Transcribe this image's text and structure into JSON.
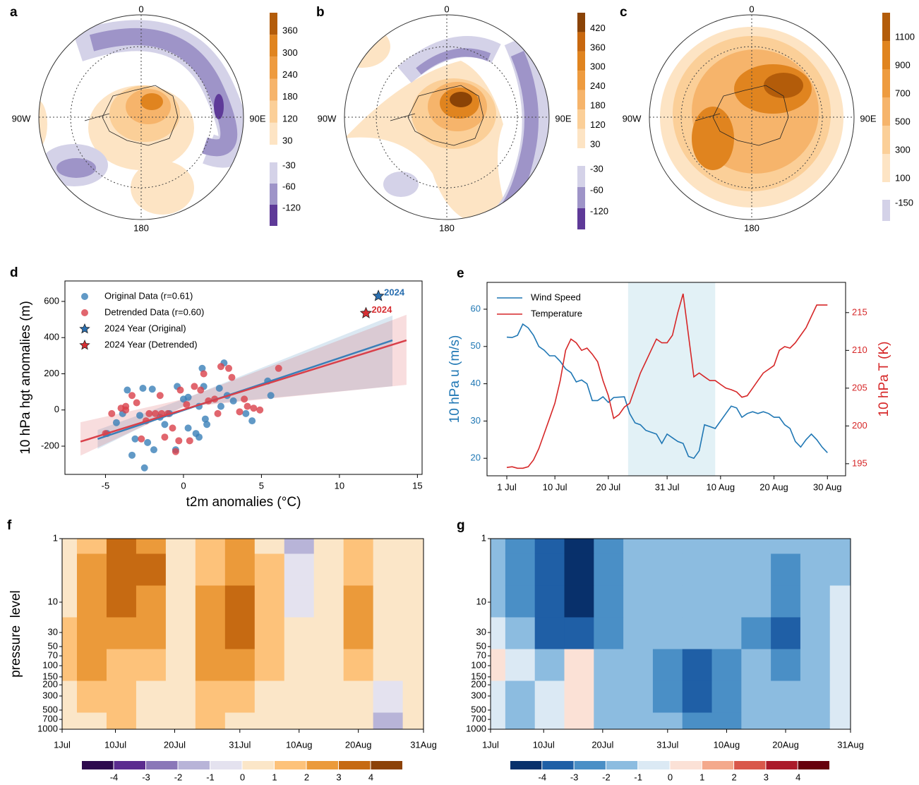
{
  "chart_data": [
    {
      "type": "map",
      "panel": "a",
      "labels": [
        "0",
        "90E",
        "180",
        "90W"
      ],
      "cticks_pos": [
        30,
        120,
        180,
        240,
        300,
        360
      ],
      "cticks_neg": [
        -30,
        -60,
        -120
      ],
      "colors_pos": [
        "#fde4c4",
        "#fbcf98",
        "#f6b46b",
        "#ee9b3f",
        "#e0841f",
        "#b35c0a"
      ],
      "colors_neg": [
        "#d4d2e8",
        "#9e94c8",
        "#5e3a98"
      ]
    },
    {
      "type": "map",
      "panel": "b",
      "labels": [
        "0",
        "90E",
        "180",
        "90W"
      ],
      "cticks_pos": [
        30,
        120,
        180,
        240,
        300,
        360,
        420
      ],
      "cticks_neg": [
        -30,
        -60,
        -120
      ],
      "colors_pos": [
        "#fde4c4",
        "#fbcf98",
        "#f6b46b",
        "#ee9b3f",
        "#e0841f",
        "#c8680f",
        "#8a4306"
      ],
      "colors_neg": [
        "#d4d2e8",
        "#9e94c8",
        "#5e3a98"
      ]
    },
    {
      "type": "map",
      "panel": "c",
      "labels": [
        "0",
        "90E",
        "180",
        "90W"
      ],
      "cticks_pos": [
        100,
        300,
        500,
        700,
        900,
        1100
      ],
      "cticks_neg": [
        -150
      ],
      "colors_pos": [
        "#fde4c4",
        "#fbcf98",
        "#f6b46b",
        "#ee9b3f",
        "#e0841f",
        "#b35c0a"
      ],
      "colors_neg": [
        "#d4d2e8"
      ]
    },
    {
      "type": "scatter",
      "panel": "d",
      "xlabel": "t2m anomalies (°C)",
      "ylabel": "10 hPa hgt anomalies (m)",
      "xlim": [
        -7.6,
        15.3
      ],
      "ylim": [
        -356,
        713
      ],
      "xticks": [
        -5,
        0,
        5,
        10,
        15
      ],
      "yticks": [
        -200,
        0,
        200,
        400,
        600
      ],
      "series": [
        {
          "name": "Original Data (r=0.61)",
          "color": "#3a7fb8",
          "x": [
            -4.9,
            -4.3,
            -3.9,
            -3.6,
            -3.3,
            -3.1,
            -2.8,
            -2.6,
            -2.5,
            -2.3,
            -2.0,
            -1.9,
            -1.5,
            -1.2,
            -0.9,
            -0.4,
            0.0,
            0.3,
            0.8,
            1.0,
            1.3,
            1.4,
            1.5,
            2.3,
            2.4,
            2.6,
            2.8,
            3.2,
            4.0,
            4.4,
            5.4,
            5.6,
            1.0,
            1.2,
            -0.5,
            0.3
          ],
          "y": [
            -130,
            -70,
            -20,
            110,
            -250,
            -160,
            -30,
            120,
            -320,
            -180,
            115,
            -220,
            -40,
            -80,
            -20,
            130,
            60,
            70,
            -130,
            20,
            130,
            -50,
            -80,
            120,
            20,
            260,
            80,
            50,
            -20,
            -60,
            160,
            80,
            -150,
            230,
            -220,
            -100
          ],
          "fit_x": [
            -5.5,
            13.4
          ],
          "fit_y": [
            -160,
            385
          ],
          "ci_x": [
            -5.5,
            0,
            13.4
          ],
          "ci_low": [
            -215,
            20,
            131
          ],
          "ci_high": [
            -110,
            60,
            522
          ]
        },
        {
          "name": "Detrended Data (r=0.60)",
          "color": "#d9404a",
          "x": [
            -5.0,
            -4.6,
            -4.0,
            -3.7,
            -3.3,
            -3.0,
            -2.7,
            -2.4,
            -2.2,
            -1.8,
            -1.4,
            -1.2,
            -1.0,
            -0.7,
            -0.5,
            -0.3,
            -0.2,
            0.2,
            0.4,
            0.7,
            1.1,
            1.3,
            1.6,
            2.0,
            2.2,
            2.4,
            2.9,
            3.1,
            3.6,
            3.9,
            4.1,
            4.5,
            4.9,
            6.1,
            -3.7,
            -1.5
          ],
          "y": [
            -130,
            -20,
            10,
            0,
            80,
            40,
            -160,
            -60,
            -20,
            -20,
            -20,
            -150,
            -20,
            -100,
            -230,
            -170,
            110,
            30,
            -170,
            130,
            110,
            200,
            50,
            60,
            -20,
            240,
            230,
            180,
            -10,
            60,
            20,
            10,
            0,
            230,
            20,
            80
          ],
          "fit_x": [
            -6.6,
            14.3
          ],
          "fit_y": [
            -175,
            385
          ],
          "ci_x": [
            -6.6,
            0,
            14.3
          ],
          "ci_low": [
            -252,
            15,
            139
          ],
          "ci_high": [
            -68,
            60,
            526
          ]
        }
      ],
      "highlights": [
        {
          "name": "2024 Year (Original)",
          "label": "2024",
          "color": "#2a6fb0",
          "x": 12.5,
          "y": 630
        },
        {
          "name": "2024 Year (Detrended)",
          "label": "2024",
          "color": "#d62f33",
          "x": 11.7,
          "y": 535
        }
      ]
    },
    {
      "type": "line",
      "panel": "e",
      "ylabel": "10 hPa u (m/s)",
      "y2label": "10 hPa T (K)",
      "xlim": [
        -3.7,
        63.4
      ],
      "ylim": [
        15.3,
        67.2
      ],
      "y2lim": [
        193.4,
        219
      ],
      "xticks": [
        {
          "value": 0,
          "label": "1 Jul"
        },
        {
          "value": 9,
          "label": "10 Jul"
        },
        {
          "value": 19,
          "label": "20 Jul"
        },
        {
          "value": 30,
          "label": "31 Jul"
        },
        {
          "value": 40,
          "label": "10 Aug"
        },
        {
          "value": 50,
          "label": "20 Aug"
        },
        {
          "value": 60,
          "label": "30 Aug"
        }
      ],
      "yticks": [
        20,
        30,
        40,
        50,
        60
      ],
      "y2ticks": [
        195,
        200,
        205,
        210,
        215
      ],
      "highlight": [
        22.7,
        39
      ],
      "x": [
        0,
        1,
        2,
        3,
        4,
        5,
        6,
        7,
        8,
        9,
        10,
        11,
        12,
        13,
        14,
        15,
        16,
        17,
        18,
        19,
        20,
        21,
        22,
        23,
        24,
        25,
        26,
        27,
        28,
        29,
        30,
        31,
        32,
        33,
        34,
        35,
        36,
        37,
        38,
        39,
        40,
        41,
        42,
        43,
        44,
        45,
        46,
        47,
        48,
        49,
        50,
        51,
        52,
        53,
        54,
        55,
        56,
        57,
        58,
        59,
        60
      ],
      "series": [
        {
          "name": "Wind Speed",
          "color": "#1f77b4",
          "values": [
            52.5,
            52.4,
            53,
            56,
            55,
            53,
            50,
            49,
            47.5,
            47.5,
            46,
            44,
            43,
            40.5,
            41,
            40,
            35.5,
            35.5,
            36.5,
            35,
            36.3,
            36.4,
            36.5,
            32,
            29.5,
            29,
            27.5,
            27,
            26.5,
            24,
            26.5,
            25.5,
            24.5,
            24,
            20.5,
            20,
            22,
            29,
            28.5,
            28,
            30,
            32,
            34,
            33.5,
            31,
            32,
            32.5,
            32,
            32.5,
            32,
            31,
            31,
            29,
            28,
            24.5,
            23,
            25,
            26.5,
            25,
            23,
            21.5
          ]
        },
        {
          "name": "Temperature",
          "color": "#d62728",
          "axis": "y2",
          "values": [
            194.5,
            194.6,
            194.4,
            194.4,
            194.6,
            195.5,
            197,
            199,
            201,
            203,
            206,
            210,
            211.5,
            211,
            210,
            210.3,
            209.5,
            208.5,
            206,
            204,
            201,
            201.5,
            202.5,
            203,
            205,
            207,
            208.5,
            210,
            211.5,
            211,
            211,
            212,
            215,
            217.5,
            212,
            206.5,
            207,
            206.5,
            206,
            206,
            205.5,
            205,
            204.8,
            204.5,
            203.8,
            204,
            205,
            206,
            207,
            207.5,
            208,
            210,
            210.5,
            210.3,
            211,
            212,
            213,
            214.5,
            216,
            216,
            216
          ]
        }
      ]
    },
    {
      "type": "contour",
      "panel": "f",
      "ylabel": "pressure  level",
      "log_y": true,
      "xlim": [
        0,
        61
      ],
      "ylim": [
        1,
        1000
      ],
      "x": [
        0,
        5,
        10,
        15,
        20,
        25,
        30,
        35,
        40,
        45,
        50,
        55,
        60
      ],
      "levels": [
        1,
        3,
        10,
        30,
        100,
        300,
        1000
      ],
      "xticks": [
        {
          "value": 0,
          "label": "1Jul"
        },
        {
          "value": 9,
          "label": "10Jul"
        },
        {
          "value": 19,
          "label": "20Jul"
        },
        {
          "value": 30,
          "label": "31Jul"
        },
        {
          "value": 40,
          "label": "10Aug"
        },
        {
          "value": 50,
          "label": "20Aug"
        },
        {
          "value": 61,
          "label": "31Aug"
        }
      ],
      "yticks": [
        1,
        10,
        30,
        50,
        70,
        100,
        150,
        200,
        300,
        500,
        700,
        1000
      ],
      "z": [
        [
          1,
          2,
          4,
          3,
          1,
          2,
          3,
          1,
          -1,
          1,
          2,
          1,
          1
        ],
        [
          1,
          3,
          4,
          4,
          1,
          2,
          3,
          2,
          0,
          1,
          2,
          1,
          1
        ],
        [
          1,
          3,
          4,
          3,
          1,
          3,
          4,
          2,
          0,
          1,
          3,
          1,
          1
        ],
        [
          2,
          3,
          3,
          3,
          1,
          3,
          4,
          2,
          1,
          1,
          3,
          1,
          1
        ],
        [
          2,
          3,
          2,
          2,
          1,
          3,
          3,
          2,
          1,
          1,
          2,
          1,
          1
        ],
        [
          1,
          2,
          2,
          1,
          1,
          2,
          2,
          1,
          1,
          1,
          1,
          0,
          1
        ],
        [
          1,
          1,
          2,
          1,
          1,
          2,
          1,
          1,
          1,
          1,
          1,
          -1,
          1
        ]
      ],
      "cticks": [
        -4,
        -3,
        -2,
        -1,
        0,
        1,
        2,
        3,
        4
      ],
      "colors": [
        "#2d0a4e",
        "#5b2c8f",
        "#8a77b8",
        "#b8b4d8",
        "#e4e2ef",
        "#fbe6c8",
        "#fdc27a",
        "#eb9a3a",
        "#c66a12",
        "#8c4208"
      ]
    },
    {
      "type": "contour",
      "panel": "g",
      "log_y": true,
      "xlim": [
        0,
        61
      ],
      "ylim": [
        1,
        1000
      ],
      "x": [
        0,
        5,
        10,
        15,
        20,
        25,
        30,
        35,
        40,
        45,
        50,
        55,
        60
      ],
      "levels": [
        1,
        3,
        10,
        30,
        100,
        300,
        1000
      ],
      "xticks": [
        {
          "value": 0,
          "label": "1Jul"
        },
        {
          "value": 9,
          "label": "10Jul"
        },
        {
          "value": 19,
          "label": "20Jul"
        },
        {
          "value": 30,
          "label": "31Jul"
        },
        {
          "value": 40,
          "label": "10Aug"
        },
        {
          "value": 50,
          "label": "20Aug"
        },
        {
          "value": 61,
          "label": "31Aug"
        }
      ],
      "yticks": [
        1,
        10,
        30,
        50,
        70,
        100,
        150,
        200,
        300,
        500,
        700,
        1000
      ],
      "z": [
        [
          -1,
          -2,
          -3,
          -4,
          -2,
          -1,
          -1,
          -1,
          -1,
          -1,
          -1,
          -1,
          -1
        ],
        [
          -1,
          -2,
          -3,
          -4,
          -2,
          -1,
          -1,
          -1,
          -1,
          -1,
          -2,
          -1,
          -1
        ],
        [
          -1,
          -2,
          -3,
          -4,
          -2,
          -1,
          -1,
          -1,
          -1,
          -1,
          -2,
          -1,
          0
        ],
        [
          0,
          -1,
          -3,
          -3,
          -2,
          -1,
          -1,
          -1,
          -1,
          -2,
          -3,
          -1,
          0
        ],
        [
          1,
          0,
          -1,
          1,
          -1,
          -1,
          -2,
          -3,
          -2,
          -1,
          -2,
          -1,
          0
        ],
        [
          0,
          -1,
          0,
          1,
          -1,
          -1,
          -2,
          -3,
          -2,
          -1,
          -1,
          -1,
          0
        ],
        [
          0,
          -1,
          0,
          1,
          -1,
          -1,
          -1,
          -2,
          -2,
          -1,
          -1,
          -1,
          0
        ]
      ],
      "cticks": [
        -4,
        -3,
        -2,
        -1,
        0,
        1,
        2,
        3,
        4
      ],
      "colors": [
        "#08306b",
        "#1f5fa6",
        "#4a8fc6",
        "#8cbce0",
        "#dbe9f4",
        "#fbe1d6",
        "#f4a98c",
        "#d9574a",
        "#ab1a2a",
        "#67000d"
      ]
    }
  ]
}
